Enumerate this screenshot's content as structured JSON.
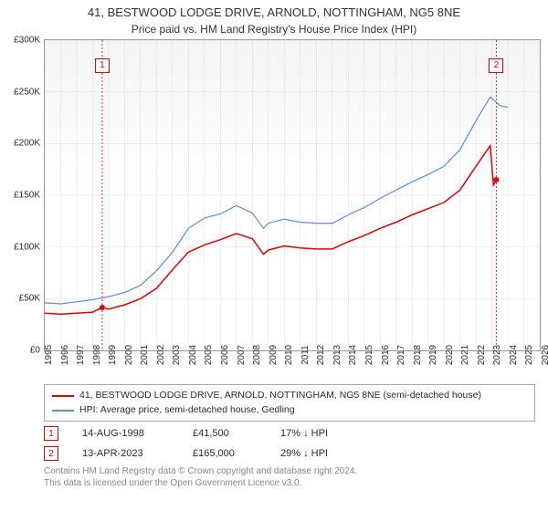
{
  "title": "41, BESTWOOD LODGE DRIVE, ARNOLD, NOTTINGHAM, NG5 8NE",
  "subtitle": "Price paid vs. HM Land Registry's House Price Index (HPI)",
  "chart": {
    "type": "line",
    "background_color": "#ffffff",
    "grid_color": "#dcdcdc",
    "border_color": "#999999",
    "x": {
      "min": 1995,
      "max": 2026,
      "ticks": [
        1995,
        1996,
        1997,
        1998,
        1999,
        2000,
        2001,
        2002,
        2003,
        2004,
        2005,
        2006,
        2007,
        2008,
        2009,
        2010,
        2011,
        2012,
        2013,
        2014,
        2015,
        2016,
        2017,
        2018,
        2019,
        2020,
        2021,
        2022,
        2023,
        2024,
        2025,
        2026
      ],
      "label_fontsize": 10,
      "label_color": "#2c2c2c"
    },
    "y": {
      "min": 0,
      "max": 300000,
      "ticks": [
        0,
        50000,
        100000,
        150000,
        200000,
        250000,
        300000
      ],
      "tick_labels": [
        "£0",
        "£50K",
        "£100K",
        "£150K",
        "£200K",
        "£250K",
        "£300K"
      ],
      "label_fontsize": 10,
      "label_color": "#2c2c2c"
    },
    "series": [
      {
        "name": "price_paid",
        "label": "41, BESTWOOD LODGE DRIVE, ARNOLD, NOTTINGHAM, NG5 8NE (semi-detached house)",
        "color": "#e60000",
        "line_width": 1.5,
        "points": [
          [
            1995,
            36000
          ],
          [
            1996,
            35000
          ],
          [
            1997,
            36000
          ],
          [
            1998,
            37000
          ],
          [
            1998.6,
            41500
          ],
          [
            1999,
            40000
          ],
          [
            2000,
            44000
          ],
          [
            2001,
            50000
          ],
          [
            2002,
            60000
          ],
          [
            2003,
            78000
          ],
          [
            2004,
            95000
          ],
          [
            2005,
            102000
          ],
          [
            2006,
            107000
          ],
          [
            2007,
            113000
          ],
          [
            2008,
            108000
          ],
          [
            2008.7,
            93000
          ],
          [
            2009,
            97000
          ],
          [
            2010,
            101000
          ],
          [
            2011,
            99000
          ],
          [
            2012,
            98000
          ],
          [
            2013,
            98000
          ],
          [
            2014,
            105000
          ],
          [
            2015,
            111000
          ],
          [
            2016,
            118000
          ],
          [
            2017,
            124000
          ],
          [
            2018,
            131000
          ],
          [
            2019,
            137000
          ],
          [
            2020,
            143000
          ],
          [
            2021,
            155000
          ],
          [
            2022,
            178000
          ],
          [
            2022.9,
            198000
          ],
          [
            2023.1,
            160000
          ],
          [
            2023.28,
            165000
          ]
        ]
      },
      {
        "name": "hpi",
        "label": "HPI: Average price, semi-detached house, Gedling",
        "color": "#5b8fd6",
        "line_width": 1.2,
        "points": [
          [
            1995,
            46000
          ],
          [
            1996,
            45000
          ],
          [
            1997,
            47000
          ],
          [
            1998,
            49000
          ],
          [
            1999,
            52000
          ],
          [
            2000,
            56000
          ],
          [
            2001,
            63000
          ],
          [
            2002,
            77000
          ],
          [
            2003,
            95000
          ],
          [
            2004,
            118000
          ],
          [
            2005,
            128000
          ],
          [
            2006,
            132000
          ],
          [
            2007,
            140000
          ],
          [
            2008,
            133000
          ],
          [
            2008.7,
            118000
          ],
          [
            2009,
            123000
          ],
          [
            2010,
            127000
          ],
          [
            2011,
            124000
          ],
          [
            2012,
            123000
          ],
          [
            2013,
            123000
          ],
          [
            2014,
            131000
          ],
          [
            2015,
            138000
          ],
          [
            2016,
            147000
          ],
          [
            2017,
            155000
          ],
          [
            2018,
            163000
          ],
          [
            2019,
            170000
          ],
          [
            2020,
            178000
          ],
          [
            2021,
            194000
          ],
          [
            2022,
            222000
          ],
          [
            2022.9,
            245000
          ],
          [
            2023.5,
            237000
          ],
          [
            2024,
            235000
          ]
        ]
      }
    ],
    "sale_markers": [
      {
        "n": "1",
        "x": 1998.6,
        "color": "#e60000"
      },
      {
        "n": "2",
        "x": 2023.28,
        "color": "#e60000"
      }
    ]
  },
  "legend": {
    "rows": [
      {
        "color": "#e60000",
        "label": "41, BESTWOOD LODGE DRIVE, ARNOLD, NOTTINGHAM, NG5 8NE (semi-detached house)"
      },
      {
        "color": "#5b8fd6",
        "label": "HPI: Average price, semi-detached house, Gedling"
      }
    ]
  },
  "markers": [
    {
      "n": "1",
      "color": "#e60000",
      "date": "14-AUG-1998",
      "price": "£41,500",
      "pct": "17% ↓ HPI"
    },
    {
      "n": "2",
      "color": "#e60000",
      "date": "13-APR-2023",
      "price": "£165,000",
      "pct": "29% ↓ HPI"
    }
  ],
  "attribution": {
    "line1": "Contains HM Land Registry data © Crown copyright and database right 2024.",
    "line2": "This data is licensed under the Open Government Licence v3.0."
  }
}
